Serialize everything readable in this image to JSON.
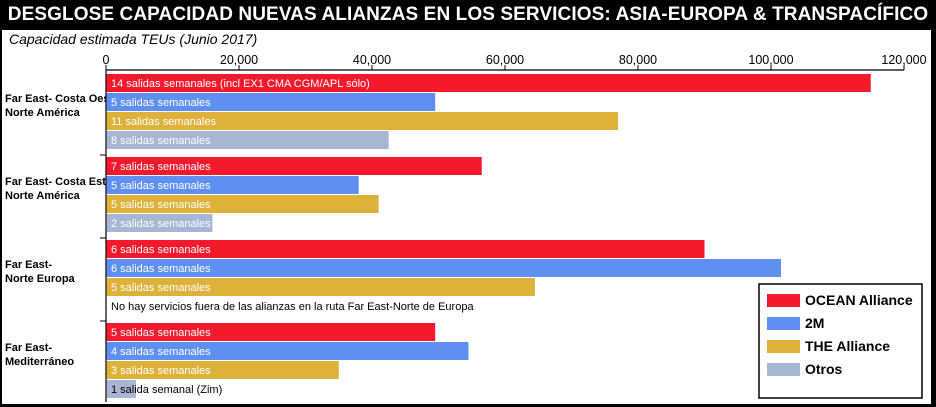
{
  "title": "DESGLOSE CAPACIDAD NUEVAS ALIANZAS EN LOS SERVICIOS: ASIA-EUROPA & TRANSPACÍFICO",
  "chart_data": {
    "type": "bar",
    "orientation": "horizontal",
    "subtitle": "Capacidad estimada TEUs (Junio 2017)",
    "xlim": [
      0,
      120000
    ],
    "x_ticks": [
      0,
      20000,
      40000,
      60000,
      80000,
      100000,
      120000
    ],
    "x_tick_labels": [
      "0",
      "20,000",
      "40,000",
      "60,000",
      "80,000",
      "100,000",
      "120,000"
    ],
    "legend_position": "bottom-right",
    "categories": [
      {
        "label_lines": [
          "Far East- Costa Oeste",
          "Norte América"
        ]
      },
      {
        "label_lines": [
          "Far East- Costa Este",
          "Norte América"
        ]
      },
      {
        "label_lines": [
          "Far East-",
          "Norte Europa"
        ]
      },
      {
        "label_lines": [
          "Far East-",
          "Mediterráneo"
        ]
      }
    ],
    "series": [
      {
        "name": "OCEAN Alliance",
        "color": "#f5192e",
        "values": [
          115000,
          56500,
          90000,
          49500
        ],
        "bar_labels": [
          "14 salidas semanales (incl EX1 CMA CGM/APL sólo)",
          "7 salidas semanales",
          "6 salidas semanales",
          "5 salidas semanales"
        ]
      },
      {
        "name": "2M",
        "color": "#5f8ff2",
        "values": [
          49500,
          38000,
          101500,
          54500
        ],
        "bar_labels": [
          "5 salidas semanales",
          "5 salidas semanales",
          "6 salidas semanales",
          "4 salidas semanales"
        ]
      },
      {
        "name": "THE Alliance",
        "color": "#deb13a",
        "values": [
          77000,
          41000,
          64500,
          35000
        ],
        "bar_labels": [
          "11 salidas semanales",
          "5 salidas semanales",
          "5 salidas semanales",
          "3 salidas semanales"
        ]
      },
      {
        "name": "Otros",
        "color": "#a7b6d3",
        "values": [
          42500,
          16000,
          0,
          4500
        ],
        "bar_labels": [
          "8 salidas semanales",
          "2 salidas semanales",
          "No hay servicios fuera de las alianzas en la ruta Far East-Norte de Europa",
          "1 salida semanal (Zim)"
        ]
      }
    ]
  }
}
